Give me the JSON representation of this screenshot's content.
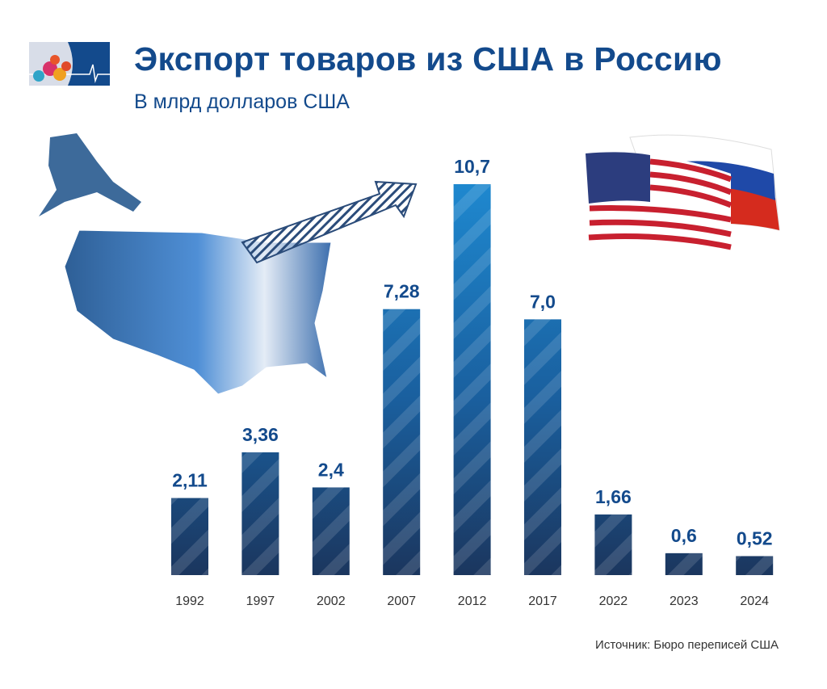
{
  "header": {
    "title": "Экспорт товаров из США в Россию",
    "subtitle": "В млрд долларов США"
  },
  "source": "Источник: Бюро переписей США",
  "colors": {
    "title": "#134a8c",
    "bar_top": "#1e88cf",
    "bar_bottom": "#1b365e"
  },
  "chart_data": {
    "type": "bar",
    "title": "Экспорт товаров из США в Россию",
    "subtitle": "В млрд долларов США",
    "categories": [
      "1992",
      "1997",
      "2002",
      "2007",
      "2012",
      "2017",
      "2022",
      "2023",
      "2024"
    ],
    "values": [
      2.11,
      3.36,
      2.4,
      7.28,
      10.7,
      7.0,
      1.66,
      0.6,
      0.52
    ],
    "data_labels": [
      "2,11",
      "3,36",
      "2,4",
      "7,28",
      "10,7",
      "7,0",
      "1,66",
      "0,6",
      "0,52"
    ],
    "ylim": [
      0,
      10.7
    ],
    "grid": false,
    "legend": "none"
  }
}
